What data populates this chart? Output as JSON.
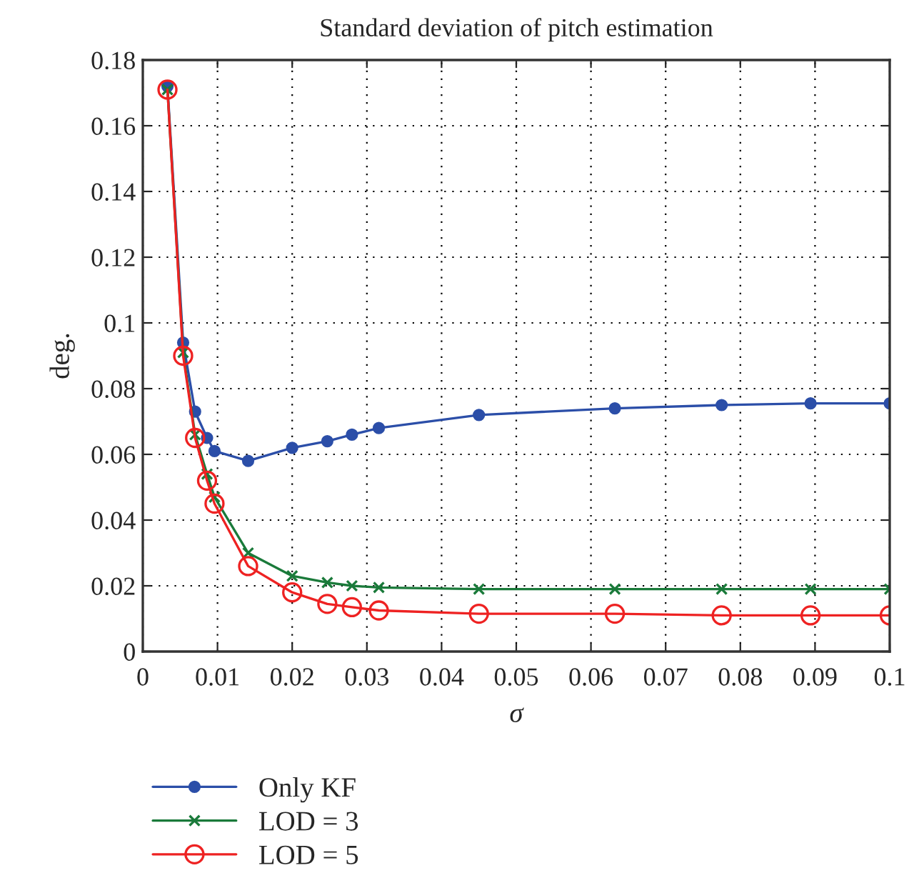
{
  "chart_data": {
    "type": "line",
    "title": "Standard deviation of pitch estimation",
    "xlabel": "σ",
    "ylabel": "deg.",
    "x": [
      0.0033,
      0.0054,
      0.007,
      0.0086,
      0.0096,
      0.0141,
      0.02,
      0.0247,
      0.028,
      0.0316,
      0.045,
      0.0632,
      0.0775,
      0.0894,
      0.1
    ],
    "series": [
      {
        "name": "Only KF",
        "color": "#2b4ea8",
        "marker": "circle",
        "values": [
          0.172,
          0.094,
          0.073,
          0.065,
          0.061,
          0.058,
          0.062,
          0.064,
          0.066,
          0.068,
          0.072,
          0.074,
          0.075,
          0.0755,
          0.0755
        ]
      },
      {
        "name": "LOD = 3",
        "color": "#1a7a3a",
        "marker": "cross",
        "values": [
          0.171,
          0.091,
          0.066,
          0.054,
          0.047,
          0.03,
          0.023,
          0.021,
          0.02,
          0.0195,
          0.019,
          0.019,
          0.019,
          0.019,
          0.019
        ]
      },
      {
        "name": "LOD = 5",
        "color": "#ee2222",
        "marker": "circle_open",
        "values": [
          0.171,
          0.09,
          0.065,
          0.052,
          0.045,
          0.026,
          0.018,
          0.0145,
          0.0135,
          0.0125,
          0.0115,
          0.0115,
          0.011,
          0.011,
          0.011
        ]
      }
    ],
    "xlim": [
      0,
      0.1
    ],
    "xticks": [
      0,
      0.01,
      0.02,
      0.03,
      0.04,
      0.05,
      0.06,
      0.07,
      0.08,
      0.09,
      0.1
    ],
    "ylim": [
      0,
      0.18
    ],
    "yticks": [
      0,
      0.02,
      0.04,
      0.06,
      0.08,
      0.1,
      0.12,
      0.14,
      0.16,
      0.18
    ],
    "grid": true,
    "legend": "bottom",
    "line_style": "solid"
  }
}
